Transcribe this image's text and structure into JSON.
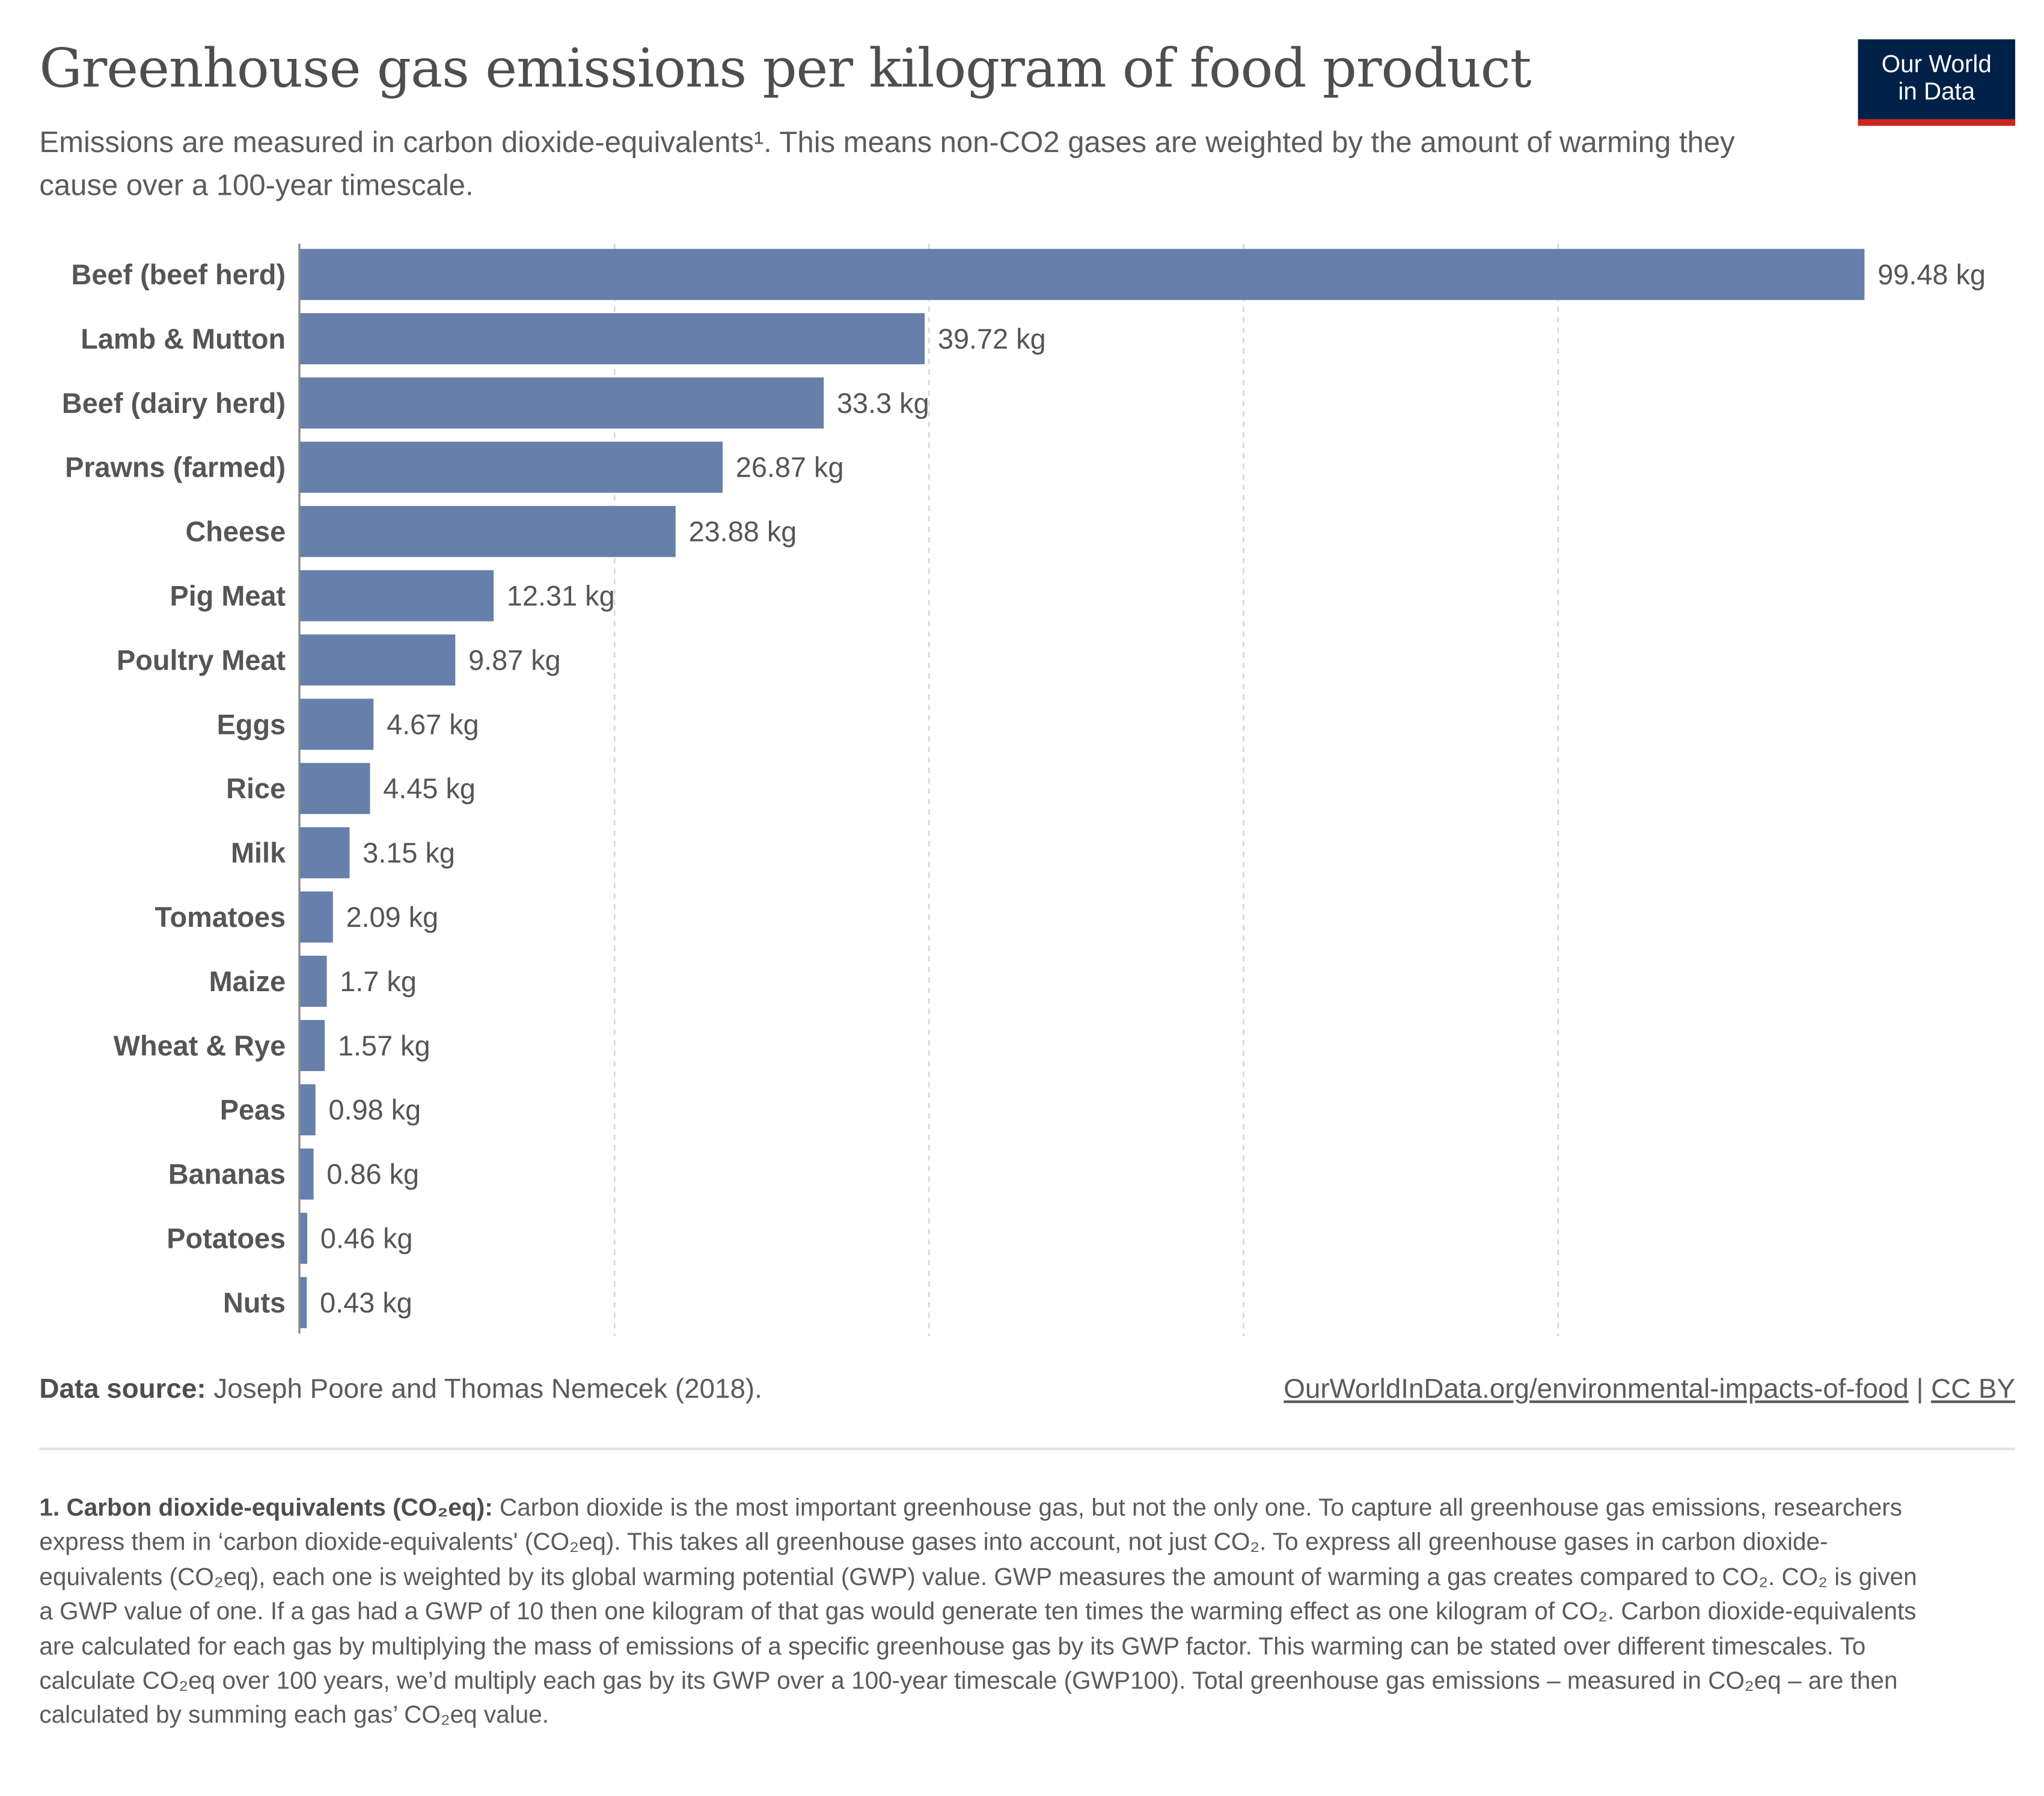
{
  "header": {
    "title": "Greenhouse gas emissions per kilogram of food product",
    "subtitle": "Emissions are measured in carbon dioxide-equivalents¹. This means non-CO2 gases are weighted by the amount of warming they cause over a 100-year timescale.",
    "logo": "Our World in Data",
    "logo_line1": "Our World",
    "logo_line2": "in Data"
  },
  "chart_data": {
    "type": "bar",
    "orientation": "horizontal",
    "categories": [
      "Beef (beef herd)",
      "Lamb & Mutton",
      "Beef (dairy herd)",
      "Prawns (farmed)",
      "Cheese",
      "Pig Meat",
      "Poultry Meat",
      "Eggs",
      "Rice",
      "Milk",
      "Tomatoes",
      "Maize",
      "Wheat & Rye",
      "Peas",
      "Bananas",
      "Potatoes",
      "Nuts"
    ],
    "values": [
      99.48,
      39.72,
      33.3,
      26.87,
      23.88,
      12.31,
      9.87,
      4.67,
      4.45,
      3.15,
      2.09,
      1.7,
      1.57,
      0.98,
      0.86,
      0.46,
      0.43
    ],
    "unit": "kg",
    "xlim": [
      0,
      100
    ],
    "gridlines": [
      20,
      40,
      60,
      80
    ],
    "grid": true,
    "bar_color": "#6680ab"
  },
  "footer": {
    "source_label": "Data source:",
    "source_text": " Joseph Poore and Thomas Nemecek (2018).",
    "link": "OurWorldInData.org/environmental-impacts-of-food",
    "separator": " | ",
    "license": "CC BY",
    "footnote_title": "1. Carbon dioxide-equivalents (CO₂eq):",
    "footnote_text": " Carbon dioxide is the most important greenhouse gas, but not the only one. To capture all greenhouse gas emissions, researchers express them in ‘carbon dioxide-equivalents' (CO₂eq). This takes all greenhouse gases into account, not just CO₂. To express all greenhouse gases in carbon dioxide-equivalents (CO₂eq), each one is weighted by its global warming potential (GWP) value. GWP measures the amount of warming a gas creates compared to CO₂. CO₂ is given a GWP value of one. If a gas had a GWP of 10 then one kilogram of that gas would generate ten times the warming effect as one kilogram of CO₂. Carbon dioxide-equivalents are calculated for each gas by multiplying the mass of emissions of a specific greenhouse gas by its GWP factor. This warming can be stated over different timescales. To calculate CO₂eq over 100 years, we’d multiply each gas by its GWP over a 100-year timescale (GWP100). Total greenhouse gas emissions – measured in CO₂eq – are then calculated by summing each gas’ CO₂eq value."
  }
}
